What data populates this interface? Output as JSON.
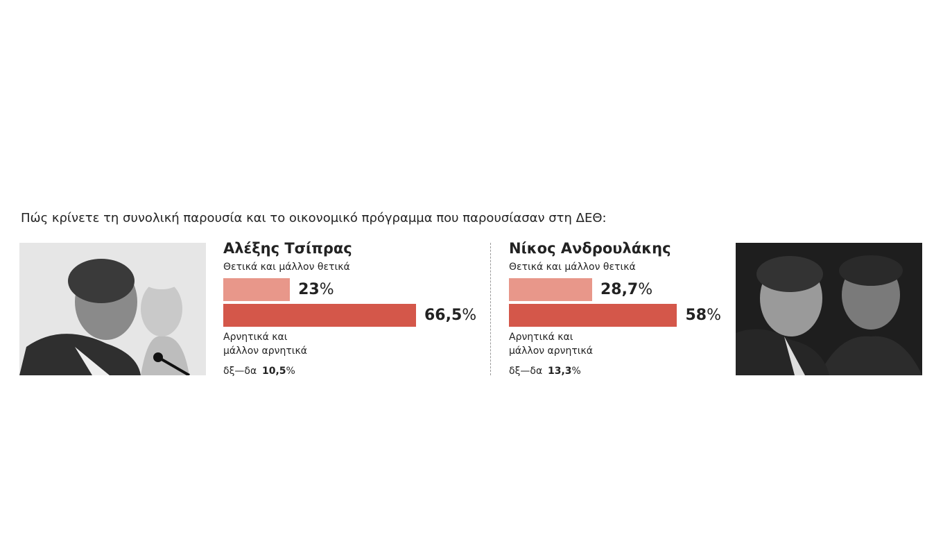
{
  "title": "Πώς κρίνετε τη συνολική παρουσία και το οικονομικό πρόγραμμα που παρουσίασαν στη ΔΕΘ:",
  "chart_data": [
    {
      "type": "bar",
      "orientation": "horizontal",
      "title": "Αλέξης Τσίπρας",
      "categories": [
        "Θετικά και μάλλον θετικά",
        "Αρνητικά και μάλλον αρνητικά"
      ],
      "values": [
        23,
        66.5
      ],
      "value_labels": [
        "23%",
        "66,5%"
      ],
      "colors": [
        "#e8978a",
        "#d4574a"
      ],
      "xlim": [
        0,
        100
      ],
      "note": {
        "label": "δξ—δα",
        "value": 10.5,
        "value_label": "10,5%"
      }
    },
    {
      "type": "bar",
      "orientation": "horizontal",
      "title": "Νίκος Ανδρουλάκης",
      "categories": [
        "Θετικά και μάλλον θετικά",
        "Αρνητικά και μάλλον αρνητικά"
      ],
      "values": [
        28.7,
        58
      ],
      "value_labels": [
        "28,7%",
        "58%"
      ],
      "colors": [
        "#e8978a",
        "#d4574a"
      ],
      "xlim": [
        0,
        100
      ],
      "note": {
        "label": "δξ—δα",
        "value": 13.3,
        "value_label": "13,3%"
      }
    }
  ]
}
